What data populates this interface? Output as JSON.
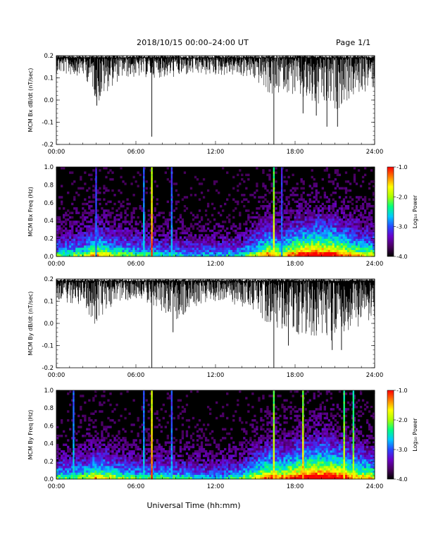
{
  "header": {
    "title": "2018/10/15  00:00–24:00 UT",
    "page": "Page 1/1"
  },
  "footer": {
    "xlabel": "Universal Time (hh:mm)"
  },
  "colors": {
    "line": "#000000",
    "background": "#ffffff",
    "colormap": [
      "#000000",
      "#4a0060",
      "#6a00c8",
      "#2848ff",
      "#00c8ff",
      "#00ff80",
      "#aaff00",
      "#ffff00",
      "#ff8000",
      "#ff0000"
    ]
  },
  "chart_data": [
    {
      "type": "line",
      "ylabel": "MCM Bx dB/dt (nT/sec)",
      "xlim": [
        0,
        24
      ],
      "ylim": [
        -0.2,
        0.2
      ],
      "xticks": [
        "00:00",
        "06:00",
        "12:00",
        "18:00",
        "24:00"
      ],
      "yticks": [
        "-0.2",
        "-0.1",
        "0.0",
        "0.1",
        "0.2"
      ],
      "baseline": 0.19,
      "envelope": [
        {
          "t": 0.0,
          "d": 0.07
        },
        {
          "t": 1.0,
          "d": 0.08
        },
        {
          "t": 2.0,
          "d": 0.08
        },
        {
          "t": 2.8,
          "d": 0.15
        },
        {
          "t": 3.2,
          "d": 0.21
        },
        {
          "t": 4.0,
          "d": 0.14
        },
        {
          "t": 5.0,
          "d": 0.09
        },
        {
          "t": 6.0,
          "d": 0.09
        },
        {
          "t": 7.0,
          "d": 0.09
        },
        {
          "t": 9.0,
          "d": 0.09
        },
        {
          "t": 10.0,
          "d": 0.08
        },
        {
          "t": 12.0,
          "d": 0.08
        },
        {
          "t": 13.0,
          "d": 0.08
        },
        {
          "t": 14.5,
          "d": 0.09
        },
        {
          "t": 15.5,
          "d": 0.13
        },
        {
          "t": 16.5,
          "d": 0.2
        },
        {
          "t": 17.0,
          "d": 0.14
        },
        {
          "t": 18.0,
          "d": 0.18
        },
        {
          "t": 19.0,
          "d": 0.22
        },
        {
          "t": 20.0,
          "d": 0.24
        },
        {
          "t": 21.0,
          "d": 0.24
        },
        {
          "t": 22.0,
          "d": 0.2
        },
        {
          "t": 23.0,
          "d": 0.16
        },
        {
          "t": 24.0,
          "d": 0.14
        }
      ],
      "spikes": [
        {
          "t": 7.2,
          "y": -0.165
        },
        {
          "t": 16.4,
          "y": -0.2
        },
        {
          "t": 3.05,
          "y": -0.025
        },
        {
          "t": 2.9,
          "y": 0.02
        },
        {
          "t": 18.6,
          "y": -0.06
        },
        {
          "t": 19.6,
          "y": -0.07
        },
        {
          "t": 20.4,
          "y": -0.12
        },
        {
          "t": 21.2,
          "y": -0.12
        }
      ]
    },
    {
      "type": "heatmap",
      "ylabel": "MCM Bx Freq (Hz)",
      "xlim": [
        0,
        24
      ],
      "ylim": [
        0.0,
        1.0
      ],
      "xticks": [
        "00:00",
        "06:00",
        "12:00",
        "18:00",
        "24:00"
      ],
      "yticks": [
        "0.0",
        "0.2",
        "0.4",
        "0.6",
        "0.8",
        "1.0"
      ],
      "colorbar": {
        "label": "Log₁₀ Power",
        "range": [
          -4.0,
          -1.0
        ],
        "ticks": [
          "-1.0",
          "-2.0",
          "-3.0",
          "-4.0"
        ]
      },
      "activity": [
        {
          "t": 0,
          "a": 0.45
        },
        {
          "t": 2,
          "a": 0.5
        },
        {
          "t": 3,
          "a": 0.65
        },
        {
          "t": 4,
          "a": 0.55
        },
        {
          "t": 6,
          "a": 0.45
        },
        {
          "t": 8,
          "a": 0.4
        },
        {
          "t": 10,
          "a": 0.35
        },
        {
          "t": 12,
          "a": 0.35
        },
        {
          "t": 14,
          "a": 0.4
        },
        {
          "t": 16,
          "a": 0.7
        },
        {
          "t": 17,
          "a": 0.6
        },
        {
          "t": 18,
          "a": 0.75
        },
        {
          "t": 19.5,
          "a": 0.85
        },
        {
          "t": 21,
          "a": 0.8
        },
        {
          "t": 23,
          "a": 0.6
        },
        {
          "t": 24,
          "a": 0.55
        }
      ],
      "streaks": [
        {
          "t": 7.2,
          "strength": 1.0
        },
        {
          "t": 16.4,
          "strength": 0.85
        },
        {
          "t": 6.6,
          "strength": 0.5
        },
        {
          "t": 8.7,
          "strength": 0.45
        },
        {
          "t": 3.0,
          "strength": 0.4
        },
        {
          "t": 17.0,
          "strength": 0.4
        }
      ]
    },
    {
      "type": "line",
      "ylabel": "MCM By dB/dt (nT/sec)",
      "xlim": [
        0,
        24
      ],
      "ylim": [
        -0.2,
        0.2
      ],
      "xticks": [
        "00:00",
        "06:00",
        "12:00",
        "18:00",
        "24:00"
      ],
      "yticks": [
        "-0.2",
        "-0.1",
        "0.0",
        "0.1",
        "0.2"
      ],
      "baseline": 0.19,
      "envelope": [
        {
          "t": 0.0,
          "d": 0.08
        },
        {
          "t": 1.0,
          "d": 0.1
        },
        {
          "t": 2.0,
          "d": 0.11
        },
        {
          "t": 3.0,
          "d": 0.2
        },
        {
          "t": 4.0,
          "d": 0.12
        },
        {
          "t": 5.0,
          "d": 0.09
        },
        {
          "t": 6.0,
          "d": 0.09
        },
        {
          "t": 7.0,
          "d": 0.1
        },
        {
          "t": 8.0,
          "d": 0.14
        },
        {
          "t": 9.0,
          "d": 0.2
        },
        {
          "t": 10.0,
          "d": 0.12
        },
        {
          "t": 12.0,
          "d": 0.09
        },
        {
          "t": 13.0,
          "d": 0.1
        },
        {
          "t": 15.0,
          "d": 0.14
        },
        {
          "t": 16.0,
          "d": 0.2
        },
        {
          "t": 17.0,
          "d": 0.22
        },
        {
          "t": 18.0,
          "d": 0.26
        },
        {
          "t": 19.0,
          "d": 0.28
        },
        {
          "t": 20.0,
          "d": 0.3
        },
        {
          "t": 21.0,
          "d": 0.28
        },
        {
          "t": 22.0,
          "d": 0.24
        },
        {
          "t": 23.0,
          "d": 0.2
        },
        {
          "t": 24.0,
          "d": 0.17
        }
      ],
      "spikes": [
        {
          "t": 7.2,
          "y": -0.2
        },
        {
          "t": 16.4,
          "y": -0.2
        },
        {
          "t": 3.0,
          "y": 0.02
        },
        {
          "t": 8.8,
          "y": -0.04
        },
        {
          "t": 17.5,
          "y": -0.1
        },
        {
          "t": 20.8,
          "y": -0.12
        },
        {
          "t": 21.5,
          "y": -0.12
        }
      ]
    },
    {
      "type": "heatmap",
      "ylabel": "MCM By Freq (Hz)",
      "xlim": [
        0,
        24
      ],
      "ylim": [
        0.0,
        1.0
      ],
      "xticks": [
        "00:00",
        "06:00",
        "12:00",
        "18:00",
        "24:00"
      ],
      "yticks": [
        "0.0",
        "0.2",
        "0.4",
        "0.6",
        "0.8",
        "1.0"
      ],
      "colorbar": {
        "label": "Log₁₀ Power",
        "range": [
          -4.0,
          -1.0
        ],
        "ticks": [
          "-1.0",
          "-2.0",
          "-3.0",
          "-4.0"
        ]
      },
      "activity": [
        {
          "t": 0,
          "a": 0.45
        },
        {
          "t": 2,
          "a": 0.5
        },
        {
          "t": 3,
          "a": 0.65
        },
        {
          "t": 4,
          "a": 0.55
        },
        {
          "t": 6,
          "a": 0.45
        },
        {
          "t": 8,
          "a": 0.45
        },
        {
          "t": 10,
          "a": 0.4
        },
        {
          "t": 12,
          "a": 0.35
        },
        {
          "t": 14,
          "a": 0.45
        },
        {
          "t": 16,
          "a": 0.75
        },
        {
          "t": 17,
          "a": 0.7
        },
        {
          "t": 18,
          "a": 0.8
        },
        {
          "t": 19.5,
          "a": 0.9
        },
        {
          "t": 21,
          "a": 0.85
        },
        {
          "t": 23,
          "a": 0.65
        },
        {
          "t": 24,
          "a": 0.6
        }
      ],
      "streaks": [
        {
          "t": 7.2,
          "strength": 1.0
        },
        {
          "t": 16.4,
          "strength": 0.85
        },
        {
          "t": 18.6,
          "strength": 0.9
        },
        {
          "t": 21.7,
          "strength": 0.8
        },
        {
          "t": 22.4,
          "strength": 0.75
        },
        {
          "t": 1.3,
          "strength": 0.5
        },
        {
          "t": 6.6,
          "strength": 0.5
        },
        {
          "t": 8.7,
          "strength": 0.45
        }
      ]
    }
  ]
}
